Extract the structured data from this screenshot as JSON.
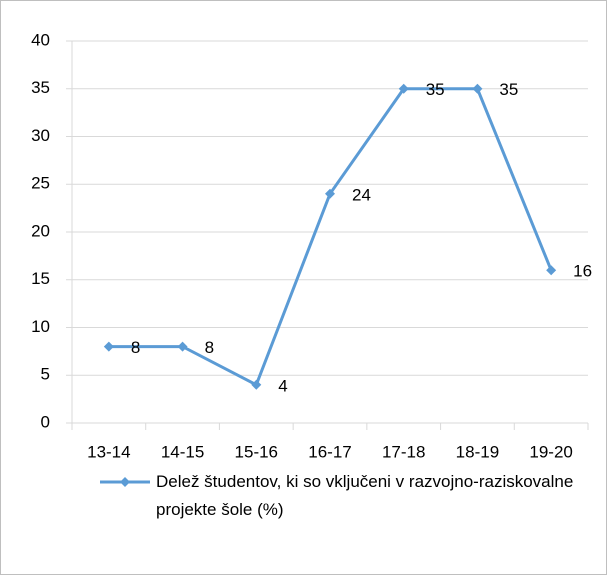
{
  "chart_data": {
    "type": "line",
    "categories": [
      "13-14",
      "14-15",
      "15-16",
      "16-17",
      "17-18",
      "18-19",
      "19-20"
    ],
    "series": [
      {
        "name": "Delež študentov, ki so vključeni v razvojno-raziskovalne projekte šole (%)",
        "color": "#5b9bd5",
        "values": [
          8,
          8,
          4,
          24,
          35,
          35,
          16
        ]
      }
    ],
    "ylim": [
      0,
      40
    ],
    "yticks": [
      0,
      5,
      10,
      15,
      20,
      25,
      30,
      35,
      40
    ],
    "grid": true,
    "legend": "bottom"
  }
}
